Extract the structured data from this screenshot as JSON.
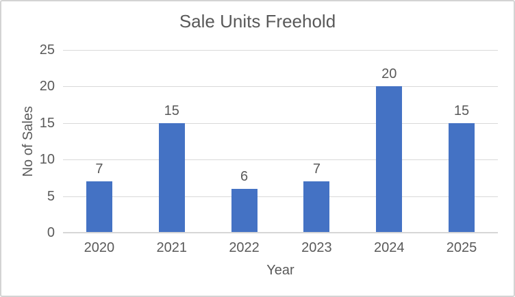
{
  "window": {
    "background": "#ffffff",
    "border_color": "#d3d3d3"
  },
  "chart_data": {
    "type": "bar",
    "title": "Sale Units Freehold",
    "xlabel": "Year",
    "ylabel": "No of Sales",
    "categories": [
      "2020",
      "2021",
      "2022",
      "2023",
      "2024",
      "2025"
    ],
    "values": [
      7,
      15,
      6,
      7,
      20,
      15
    ],
    "data_labels": [
      7,
      15,
      6,
      7,
      20,
      15
    ],
    "yticks": [
      0,
      5,
      10,
      15,
      20,
      25
    ],
    "ylim": [
      0,
      25
    ],
    "grid": "horizontal",
    "legend": "none",
    "bar_color": "#4472C4",
    "gridline_color": "#D9D9D9",
    "axis_line_color": "#D6D6D6",
    "text_color": "#595959"
  }
}
